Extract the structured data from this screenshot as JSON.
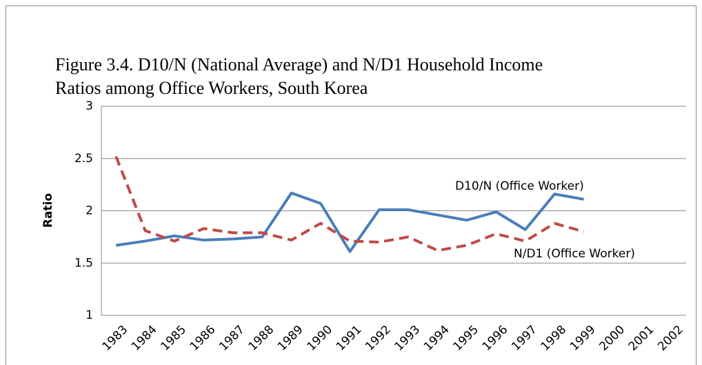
{
  "chart_data": {
    "type": "line",
    "title": [
      "Figure 3.4. D10/N (National Average) and N/D1 Household Income",
      "Ratios among Office Workers, South Korea"
    ],
    "ylabel": "Ratio",
    "categories": [
      "1983",
      "1984",
      "1985",
      "1986",
      "1987",
      "1988",
      "1989",
      "1990",
      "1991",
      "1992",
      "1993",
      "1994",
      "1995",
      "1996",
      "1997",
      "1998",
      "1999",
      "2000",
      "2001",
      "2002"
    ],
    "series": [
      {
        "name": "D10/N (Office Worker)",
        "color": "#4a7ebb",
        "dash": false,
        "values": [
          1.67,
          1.71,
          1.76,
          1.72,
          1.73,
          1.75,
          2.17,
          2.07,
          1.61,
          2.01,
          2.01,
          1.96,
          1.91,
          1.99,
          1.82,
          2.16,
          2.11,
          null,
          null,
          null
        ]
      },
      {
        "name": "N/D1 (Office Worker)",
        "color": "#be4b48",
        "dash": true,
        "values": [
          2.52,
          1.81,
          1.71,
          1.83,
          1.79,
          1.79,
          1.72,
          1.88,
          1.71,
          1.7,
          1.75,
          1.62,
          1.67,
          1.78,
          1.71,
          1.88,
          1.8,
          null,
          null,
          null
        ]
      }
    ],
    "ylim": [
      1,
      3
    ],
    "yticks": [
      1,
      1.5,
      2,
      2.5,
      3
    ],
    "grid": true
  }
}
